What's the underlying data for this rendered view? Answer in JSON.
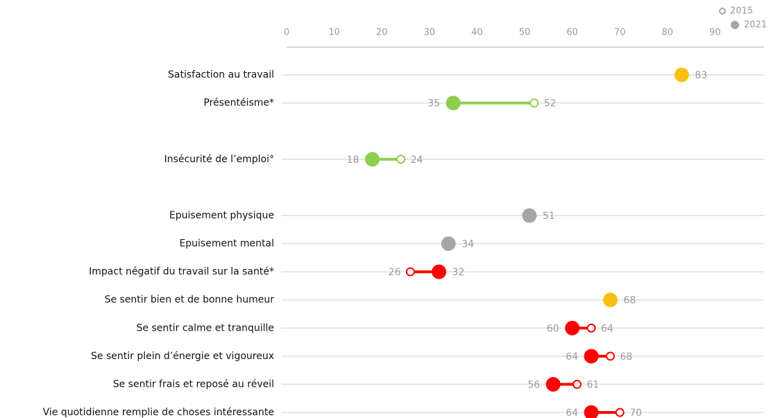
{
  "chart_data": {
    "type": "dumbbell",
    "categories": [
      "Satisfaction au travail",
      "Présentéisme*",
      null,
      "Insécurité de l’emploi°",
      null,
      "Epuisement physique",
      "Epuisement mental",
      "Impact négatif du travail sur la santé*",
      "Se sentir bien et de bonne humeur",
      "Se sentir calme et tranquille",
      "Se sentir plein d’énergie et vigoureux",
      "Se sentir frais et reposé au réveil",
      "Vie quotidienne remplie de choses intéressante"
    ],
    "series": [
      {
        "name": "2015",
        "color": "#a6a6a6",
        "marker": "hollow",
        "values": [
          null,
          52,
          null,
          24,
          null,
          null,
          null,
          26,
          null,
          64,
          68,
          61,
          70
        ]
      },
      {
        "name": "2021",
        "color": "#a6a6a6",
        "marker": "filled",
        "values": [
          83,
          35,
          null,
          18,
          null,
          51,
          34,
          32,
          68,
          60,
          64,
          56,
          64
        ]
      }
    ],
    "point_colors": [
      "#f9c012",
      "#8ccf4c",
      null,
      "#8ccf4c",
      null,
      "#a6a6a6",
      "#a6a6a6",
      "#ff0000",
      "#f9c012",
      "#ff0000",
      "#ff0000",
      "#ff0000",
      "#ff0000"
    ],
    "xlim": [
      0,
      100
    ],
    "xticks": [
      0,
      10,
      20,
      30,
      40,
      50,
      60,
      70,
      80,
      90
    ],
    "legend": "top-right"
  }
}
